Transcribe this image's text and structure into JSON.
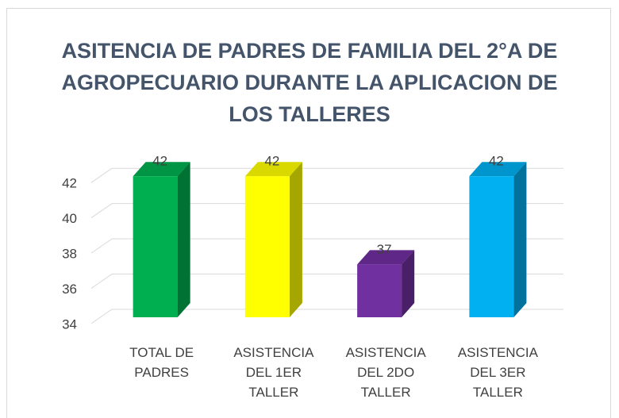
{
  "chart_data": {
    "type": "bar3d",
    "title": "ASITENCIA DE PADRES DE FAMILIA DEL 2°A DE AGROPECUARIO DURANTE LA APLICACION DE LOS TALLERES",
    "categories": [
      "TOTAL DE PADRES",
      "ASISTENCIA DEL 1ER TALLER",
      "ASISTENCIA DEL 2DO TALLER",
      "ASISTENCIA DEL 3ER TALLER"
    ],
    "values": [
      42,
      42,
      37,
      42
    ],
    "colors": [
      "#00b050",
      "#ffff00",
      "#7030a0",
      "#00b0f0"
    ],
    "ylim": [
      34,
      43
    ],
    "yticks": [
      34,
      36,
      38,
      40,
      42
    ],
    "grid": true
  }
}
